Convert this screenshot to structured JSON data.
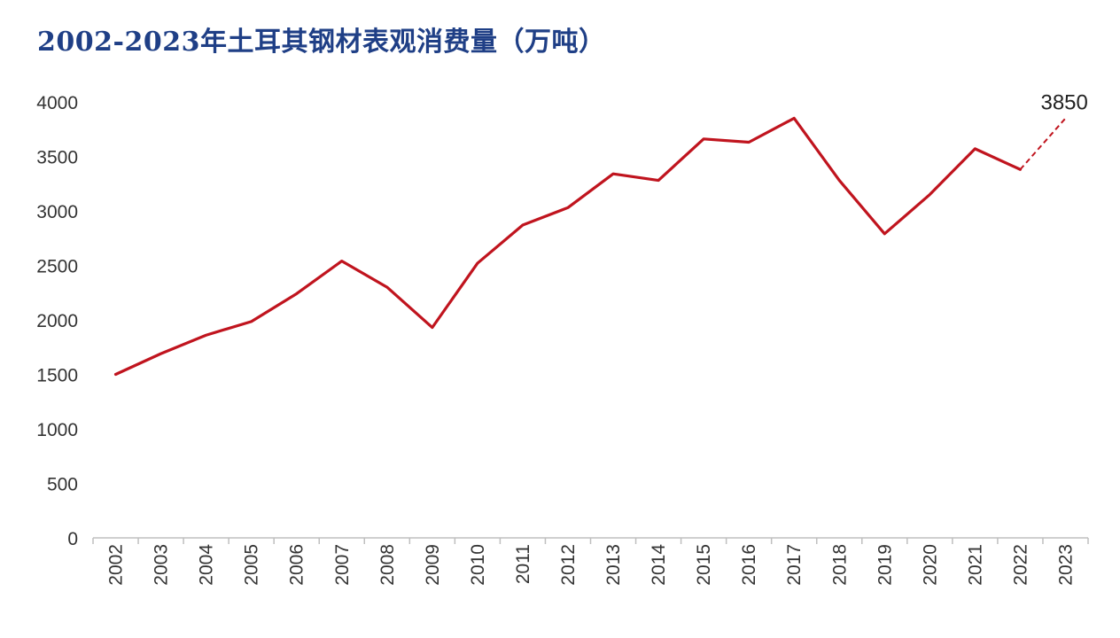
{
  "chart_data": {
    "type": "line",
    "title": "2002-2023年土耳其钢材表观消费量（万吨）",
    "xlabel": "",
    "ylabel": "",
    "categories": [
      "2002",
      "2003",
      "2004",
      "2005",
      "2006",
      "2007",
      "2008",
      "2009",
      "2010",
      "2011",
      "2012",
      "2013",
      "2014",
      "2015",
      "2016",
      "2017",
      "2018",
      "2019",
      "2020",
      "2021",
      "2022",
      "2023"
    ],
    "series": [
      {
        "values": [
          1500,
          1690,
          1860,
          1985,
          2240,
          2540,
          2300,
          1930,
          2520,
          2870,
          3030,
          3340,
          3280,
          3660,
          3630,
          3850,
          3280,
          2790,
          3150,
          3570,
          3380,
          3850
        ],
        "color": "#c0141e",
        "dashed_from_index": 20
      }
    ],
    "ylim": [
      0,
      4000
    ],
    "yticks": [
      0,
      500,
      1000,
      1500,
      2000,
      2500,
      3000,
      3500,
      4000
    ],
    "grid": false,
    "legend": "none",
    "annotations": [
      {
        "category": "2023",
        "value": 3850,
        "text": "3850"
      }
    ],
    "title_color": "#1f3f86"
  }
}
